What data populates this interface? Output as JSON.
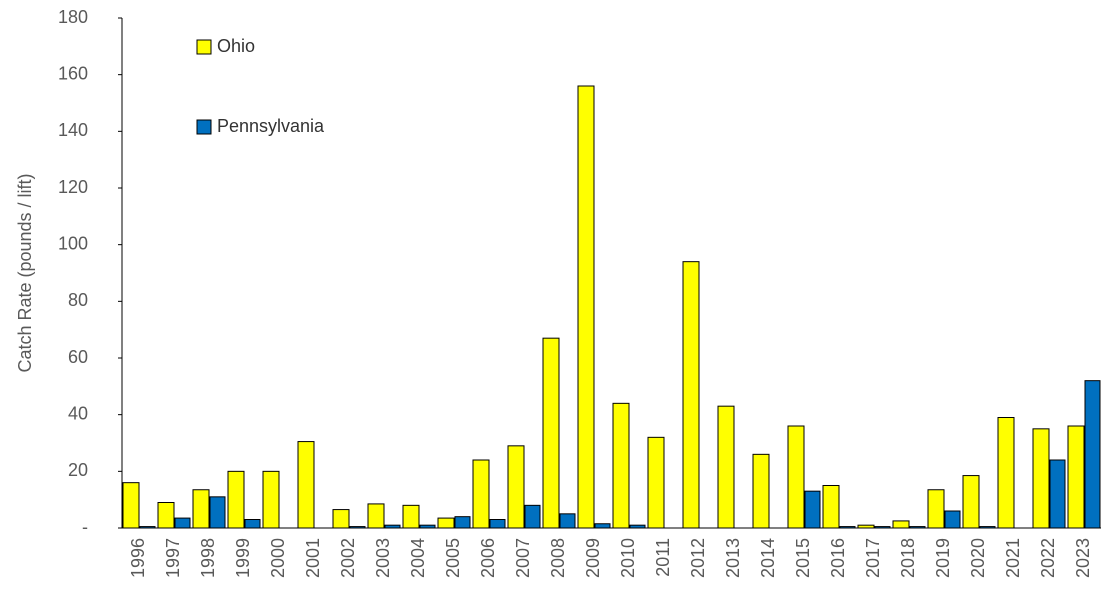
{
  "chart_data": {
    "type": "bar",
    "y_label": "Catch Rate (pounds / lift)",
    "categories": [
      "1996",
      "1997",
      "1998",
      "1999",
      "2000",
      "2001",
      "2002",
      "2003",
      "2004",
      "2005",
      "2006",
      "2007",
      "2008",
      "2009",
      "2010",
      "2011",
      "2012",
      "2013",
      "2014",
      "2015",
      "2016",
      "2017",
      "2018",
      "2019",
      "2020",
      "2021",
      "2022",
      "2023"
    ],
    "series": [
      {
        "name": "Ohio",
        "color": "#ffff00",
        "values": [
          16,
          9,
          13.5,
          20,
          20,
          30.5,
          6.5,
          8.5,
          8,
          3.5,
          24,
          29,
          67,
          156,
          44,
          32,
          94,
          43,
          26,
          36,
          15,
          1,
          2.5,
          13.5,
          18.5,
          39,
          35,
          36
        ]
      },
      {
        "name": "Pennsylvania",
        "color": "#0070c0",
        "values": [
          0.5,
          3.5,
          11,
          3,
          null,
          null,
          0.5,
          1,
          1,
          4,
          3,
          8,
          5,
          1.5,
          1,
          null,
          null,
          null,
          null,
          13,
          0.5,
          0.5,
          0.5,
          6,
          0.5,
          null,
          24,
          52
        ]
      }
    ],
    "ylim": [
      0,
      180
    ],
    "yticks": [
      {
        "value": 0,
        "label": "-"
      },
      20,
      40,
      60,
      80,
      100,
      120,
      140,
      160,
      180
    ],
    "grid": false,
    "legend": "top-left"
  }
}
